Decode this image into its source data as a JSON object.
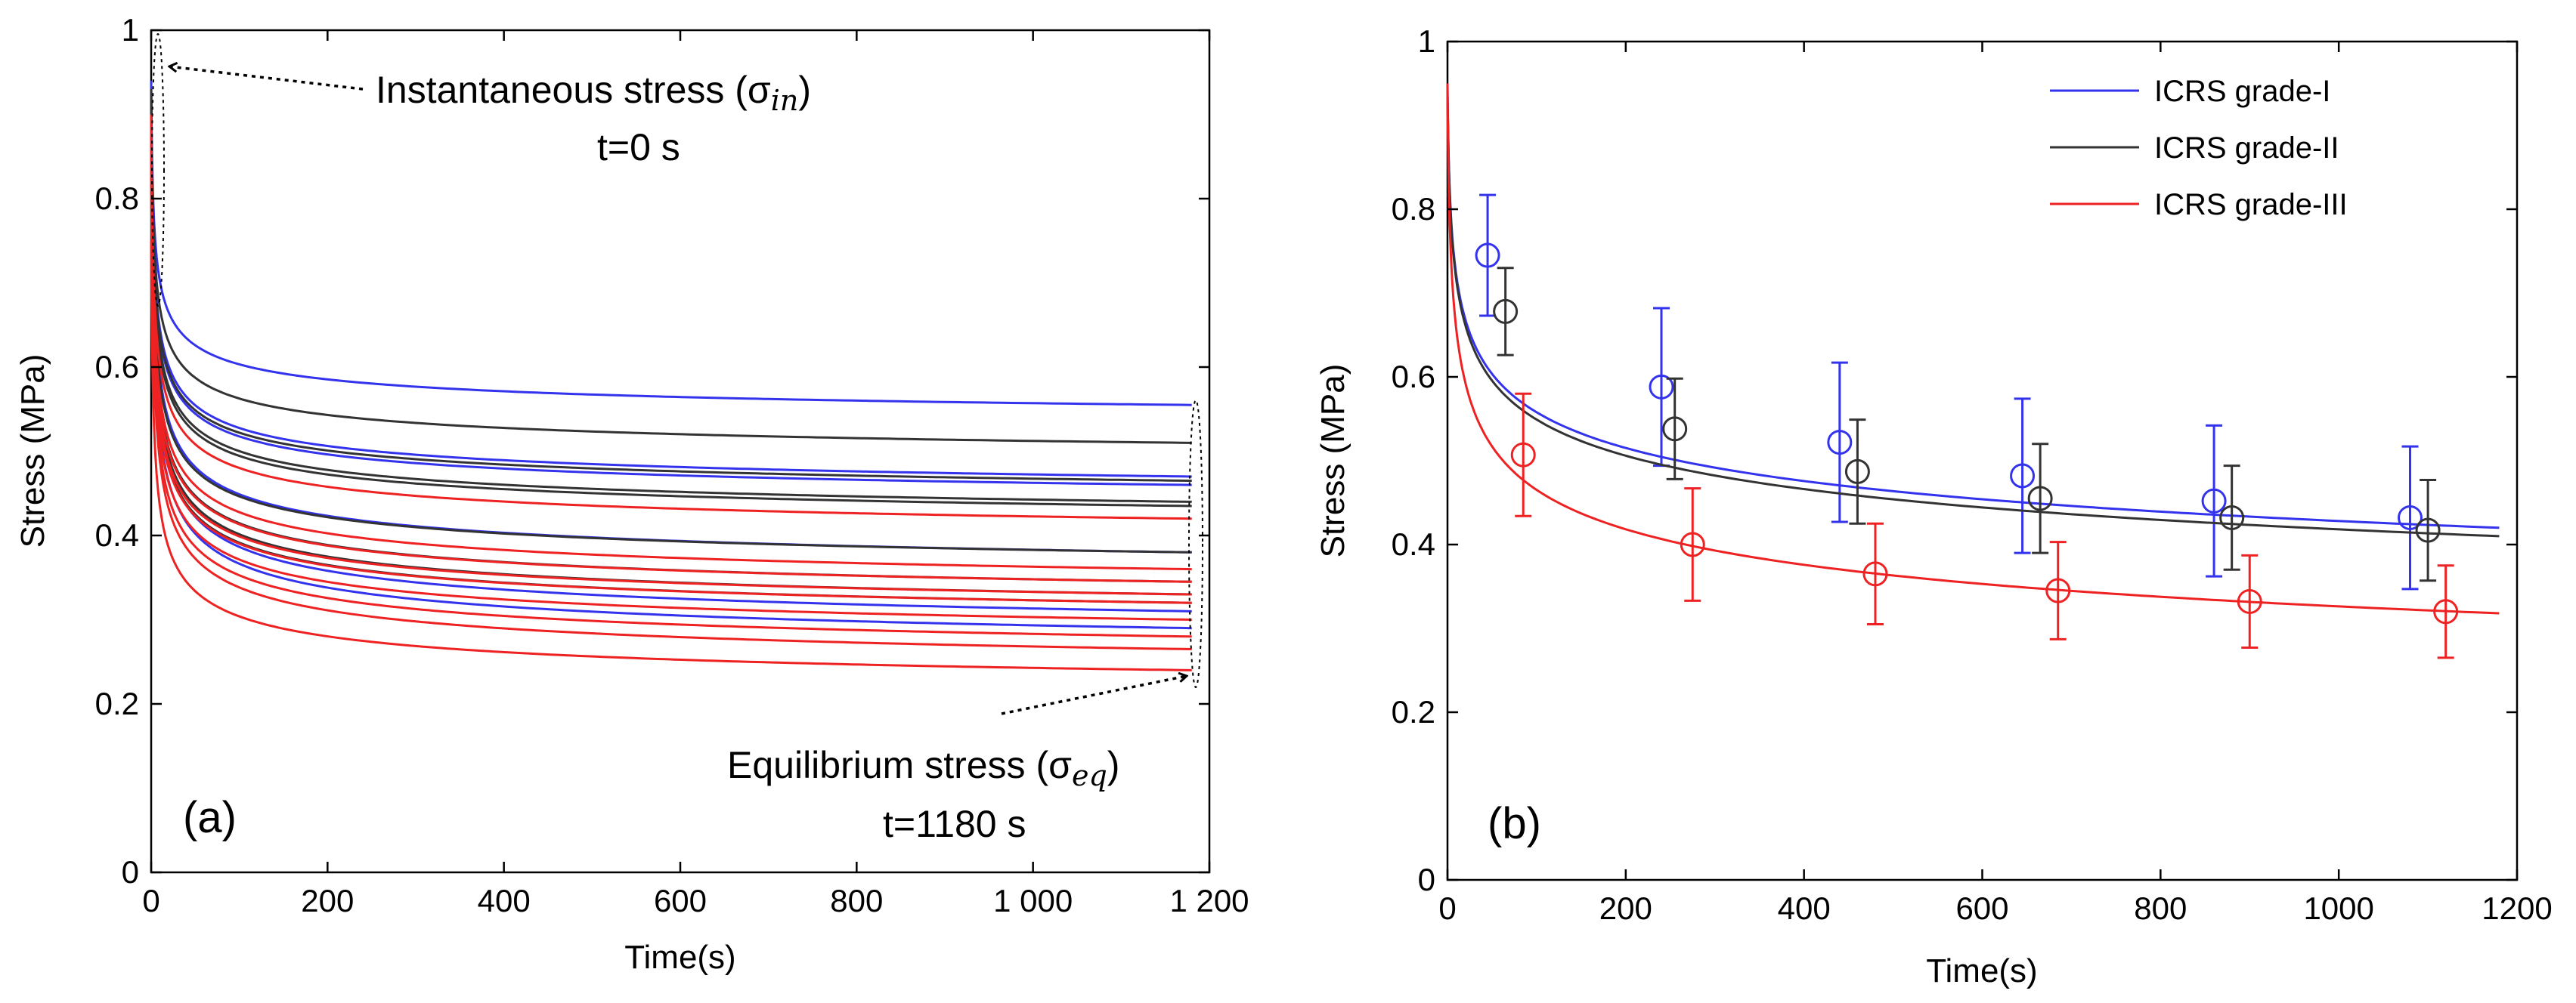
{
  "chart_data": [
    {
      "panel": "a",
      "type": "line",
      "panel_label": "(a)",
      "xlabel": "Time(s)",
      "ylabel": "Stress (MPa)",
      "xlim": [
        0,
        1200
      ],
      "ylim": [
        0,
        1
      ],
      "xticks": [
        0,
        200,
        400,
        600,
        800,
        1000,
        1200
      ],
      "xtick_labels": [
        "0",
        "200",
        "400",
        "600",
        "800",
        "1 000",
        "1 200"
      ],
      "yticks": [
        0,
        0.2,
        0.4,
        0.6,
        0.8,
        1
      ],
      "ytick_labels": [
        "0",
        "0.2",
        "0.4",
        "0.6",
        "0.8",
        "1"
      ],
      "grid": false,
      "x_end": 1180,
      "colors": {
        "blue": "#3333ee",
        "black": "#333333",
        "red": "#ee2222"
      },
      "series": [
        {
          "name": "blue-1",
          "color": "blue",
          "start": 0.94,
          "end": 0.555
        },
        {
          "name": "blue-2",
          "color": "blue",
          "start": 0.93,
          "end": 0.47
        },
        {
          "name": "blue-3",
          "color": "blue",
          "start": 0.92,
          "end": 0.46
        },
        {
          "name": "blue-4",
          "color": "blue",
          "start": 0.93,
          "end": 0.38
        },
        {
          "name": "blue-5",
          "color": "blue",
          "start": 0.92,
          "end": 0.31
        },
        {
          "name": "blue-6",
          "color": "blue",
          "start": 0.9,
          "end": 0.29
        },
        {
          "name": "black-1",
          "color": "black",
          "start": 0.93,
          "end": 0.51
        },
        {
          "name": "black-2",
          "color": "black",
          "start": 0.92,
          "end": 0.465
        },
        {
          "name": "black-3",
          "color": "black",
          "start": 0.92,
          "end": 0.44
        },
        {
          "name": "black-4",
          "color": "black",
          "start": 0.91,
          "end": 0.435
        },
        {
          "name": "black-5",
          "color": "black",
          "start": 0.91,
          "end": 0.38
        },
        {
          "name": "black-6",
          "color": "black",
          "start": 0.9,
          "end": 0.345
        },
        {
          "name": "black-7",
          "color": "black",
          "start": 0.9,
          "end": 0.33
        },
        {
          "name": "black-8",
          "color": "black",
          "start": 0.89,
          "end": 0.32
        },
        {
          "name": "red-1",
          "color": "red",
          "start": 0.9,
          "end": 0.42
        },
        {
          "name": "red-2",
          "color": "red",
          "start": 0.9,
          "end": 0.36
        },
        {
          "name": "red-3",
          "color": "red",
          "start": 0.89,
          "end": 0.345
        },
        {
          "name": "red-4",
          "color": "red",
          "start": 0.88,
          "end": 0.33
        },
        {
          "name": "red-5",
          "color": "red",
          "start": 0.88,
          "end": 0.32
        },
        {
          "name": "red-6",
          "color": "red",
          "start": 0.87,
          "end": 0.3
        },
        {
          "name": "red-7",
          "color": "red",
          "start": 0.86,
          "end": 0.28
        },
        {
          "name": "red-8",
          "color": "red",
          "start": 0.85,
          "end": 0.265
        },
        {
          "name": "red-9",
          "color": "red",
          "start": 0.75,
          "end": 0.24
        }
      ],
      "annotations": [
        {
          "name": "instantaneous",
          "text": "Instantaneous stress (σ",
          "sub": "in",
          "close": ")",
          "line2": "t=0 s",
          "points_to": {
            "x": 5,
            "y": 0.96
          }
        },
        {
          "name": "equilibrium",
          "text": "Equilibrium stress (σ",
          "sub": "eq",
          "close": ")",
          "line2": "t=1180 s",
          "points_to": {
            "x": 1180,
            "y": 0.245
          }
        }
      ]
    },
    {
      "panel": "b",
      "type": "line",
      "panel_label": "(b)",
      "xlabel": "Time(s)",
      "ylabel": "Stress (MPa)",
      "xlim": [
        0,
        1200
      ],
      "ylim": [
        0,
        1
      ],
      "xticks": [
        0,
        200,
        400,
        600,
        800,
        1000,
        1200
      ],
      "xtick_labels": [
        "0",
        "200",
        "400",
        "600",
        "800",
        "1000",
        "1200"
      ],
      "yticks": [
        0,
        0.2,
        0.4,
        0.6,
        0.8,
        1
      ],
      "ytick_labels": [
        "0",
        "0.2",
        "0.4",
        "0.6",
        "0.8",
        "1"
      ],
      "grid": false,
      "legend_position": "top-right",
      "series": [
        {
          "name": "ICRS grade-I",
          "color": "#3333ee",
          "fit_end": 0.42,
          "x": [
            45,
            240,
            440,
            645,
            860,
            1080
          ],
          "y": [
            0.745,
            0.588,
            0.522,
            0.482,
            0.452,
            0.432
          ],
          "err": [
            0.072,
            0.094,
            0.095,
            0.092,
            0.09,
            0.085
          ]
        },
        {
          "name": "ICRS grade-II",
          "color": "#333333",
          "fit_end": 0.41,
          "x": [
            65,
            255,
            460,
            665,
            880,
            1100
          ],
          "y": [
            0.678,
            0.538,
            0.487,
            0.455,
            0.432,
            0.417
          ],
          "err": [
            0.052,
            0.06,
            0.062,
            0.065,
            0.062,
            0.06
          ]
        },
        {
          "name": "ICRS grade-III",
          "color": "#ee2222",
          "fit_end": 0.318,
          "x": [
            85,
            275,
            480,
            685,
            900,
            1120
          ],
          "y": [
            0.507,
            0.4,
            0.365,
            0.345,
            0.332,
            0.32
          ],
          "err": [
            0.073,
            0.067,
            0.06,
            0.058,
            0.055,
            0.055
          ]
        }
      ]
    }
  ]
}
